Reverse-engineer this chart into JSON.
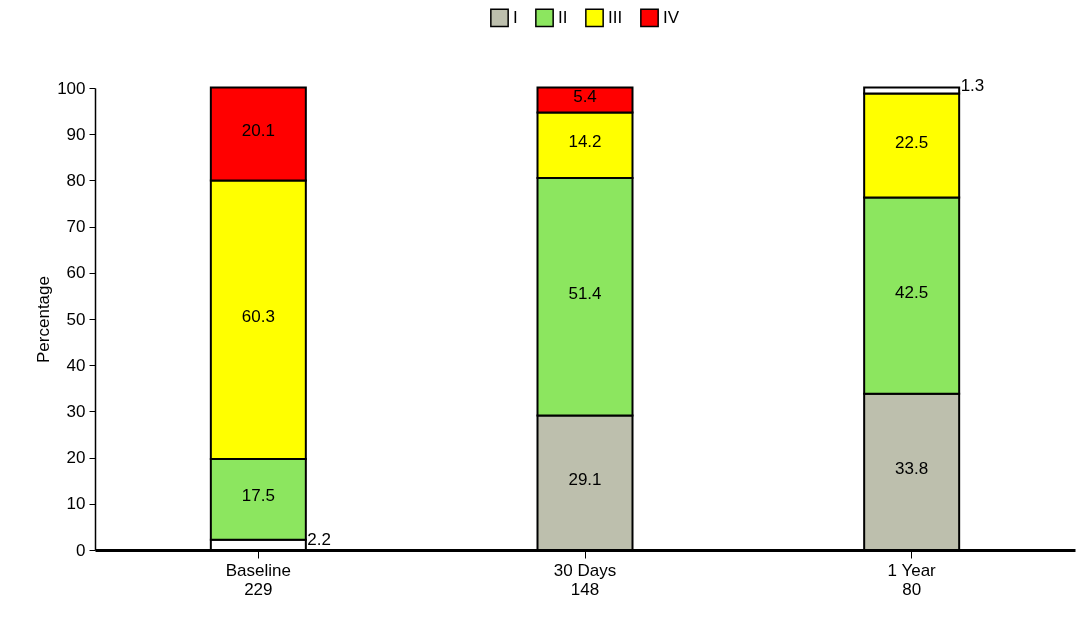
{
  "chart_data": {
    "type": "bar",
    "stacked": true,
    "ylabel": "Percentage",
    "categories": [
      "Baseline\n229",
      "30 Days\n148",
      "1 Year\n80"
    ],
    "series": [
      {
        "name": "I",
        "color": "#bdbfad",
        "colors": [
          "#ffffff",
          "#bdbfad",
          "#bdbfad"
        ],
        "values": [
          2.2,
          29.1,
          33.8
        ]
      },
      {
        "name": "II",
        "color": "#8ce65f",
        "values": [
          17.5,
          51.4,
          42.5
        ]
      },
      {
        "name": "III",
        "color": "#ffff00",
        "values": [
          60.3,
          14.2,
          22.5
        ]
      },
      {
        "name": "IV",
        "color": "#ff0000",
        "colors": [
          "#ff0000",
          "#ff0000",
          "#ffffff"
        ],
        "values": [
          20.1,
          5.4,
          1.3
        ]
      }
    ],
    "ylim": [
      0,
      100
    ],
    "yticks": [
      0,
      10,
      20,
      30,
      40,
      50,
      60,
      70,
      80,
      90,
      100
    ],
    "data_labels": true,
    "legend": "top",
    "grid": false
  }
}
